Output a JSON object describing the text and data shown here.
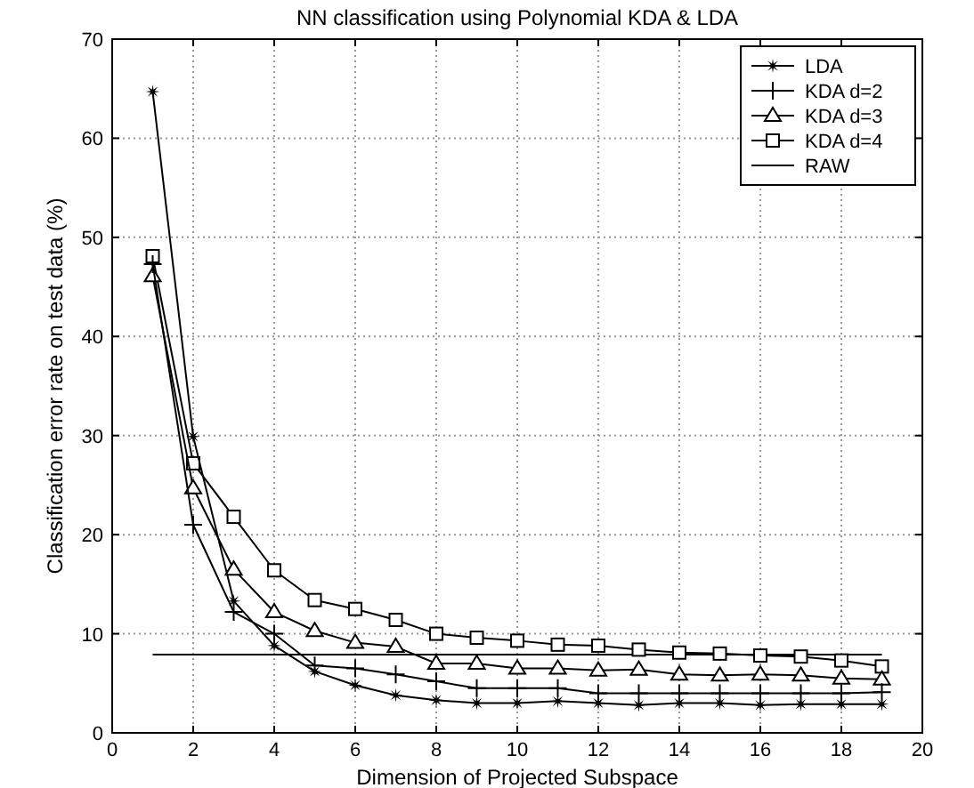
{
  "chart_data": {
    "type": "line",
    "title": "NN classification using Polynomial KDA & LDA",
    "xlabel": "Dimension of Projected Subspace",
    "ylabel": "Classification error rate on test data (%)",
    "x": [
      1,
      2,
      3,
      4,
      5,
      6,
      7,
      8,
      9,
      10,
      11,
      12,
      13,
      14,
      15,
      16,
      17,
      18,
      19
    ],
    "series": [
      {
        "name": "LDA",
        "color": "#000000",
        "marker": "star",
        "values": [
          64.7,
          29.9,
          13.3,
          8.8,
          6.2,
          4.8,
          3.8,
          3.3,
          3.0,
          3.0,
          3.2,
          3.0,
          2.8,
          3.0,
          3.0,
          2.8,
          2.9,
          2.9,
          2.9
        ]
      },
      {
        "name": "KDA d=2",
        "color": "#000000",
        "marker": "cross",
        "values": [
          47.3,
          21.0,
          12.2,
          10.0,
          6.8,
          6.5,
          5.9,
          5.2,
          4.5,
          4.5,
          4.5,
          4.0,
          4.0,
          4.0,
          4.0,
          4.0,
          4.0,
          4.0,
          4.1
        ]
      },
      {
        "name": "KDA d=3",
        "color": "#000000",
        "marker": "triangle",
        "values": [
          46.1,
          24.7,
          16.5,
          12.2,
          10.3,
          9.1,
          8.7,
          7.0,
          7.0,
          6.5,
          6.5,
          6.3,
          6.4,
          5.9,
          5.8,
          5.9,
          5.8,
          5.5,
          5.4
        ]
      },
      {
        "name": "KDA d=4",
        "color": "#000000",
        "marker": "square",
        "values": [
          48.1,
          27.2,
          21.8,
          16.4,
          13.4,
          12.5,
          11.4,
          10.0,
          9.6,
          9.3,
          8.9,
          8.8,
          8.4,
          8.1,
          8.0,
          7.8,
          7.7,
          7.3,
          6.7
        ]
      },
      {
        "name": "RAW",
        "color": "#000000",
        "marker": "none",
        "x": [
          1,
          19
        ],
        "values": [
          7.9,
          7.9
        ]
      }
    ],
    "xlim": [
      0,
      20
    ],
    "xticks": [
      0,
      2,
      4,
      6,
      8,
      10,
      12,
      14,
      16,
      18,
      20
    ],
    "ylim": [
      0,
      70
    ],
    "yticks": [
      0,
      10,
      20,
      30,
      40,
      50,
      60,
      70
    ],
    "grid": true,
    "legend": "top right"
  }
}
